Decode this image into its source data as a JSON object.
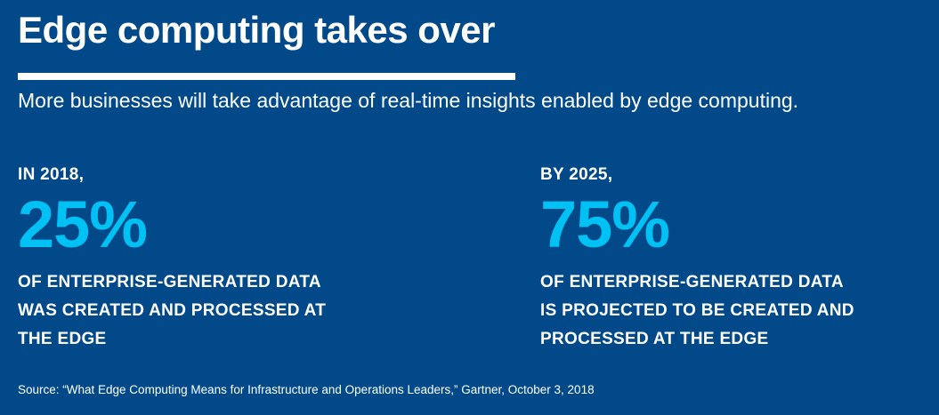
{
  "header": {
    "title": "Edge computing takes over",
    "subtitle": "More businesses will take advantage of real-time insights enabled by edge computing."
  },
  "stats": [
    {
      "label": "IN 2018,",
      "value": "25%",
      "description_lines": [
        "OF ENTERPRISE-GENERATED DATA",
        "WAS CREATED AND PROCESSED AT",
        "THE EDGE"
      ]
    },
    {
      "label": "BY 2025,",
      "value": "75%",
      "description_lines": [
        "OF ENTERPRISE-GENERATED DATA",
        "IS PROJECTED TO BE CREATED AND",
        "PROCESSED AT THE EDGE"
      ]
    }
  ],
  "footer": {
    "source": "Source: “What Edge Computing Means for Infrastructure and Operations Leaders,” Gartner, October 3, 2018"
  },
  "colors": {
    "background": "#02498a",
    "accent": "#00c1f3",
    "text": "#ffffff"
  }
}
